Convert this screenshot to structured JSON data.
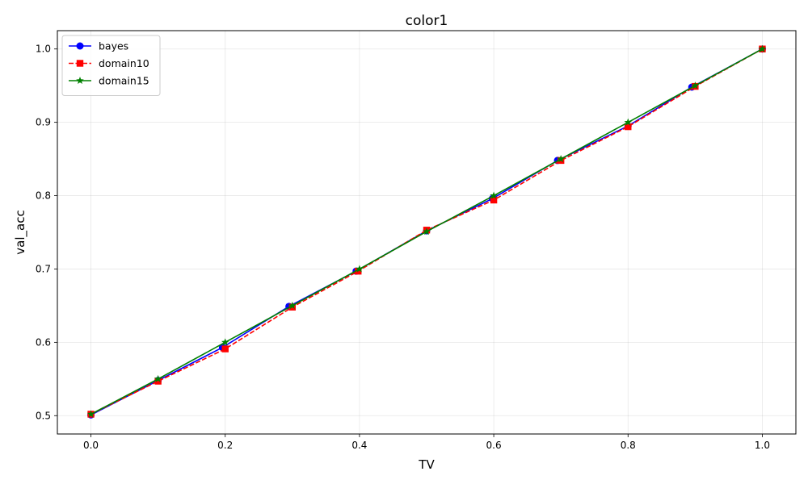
{
  "chart_data": {
    "type": "line",
    "title": "color1",
    "xlabel": "TV",
    "ylabel": "val_acc",
    "xlim": [
      -0.05,
      1.05
    ],
    "ylim": [
      0.475,
      1.025
    ],
    "xticks": [
      0.0,
      0.2,
      0.4,
      0.6,
      0.8,
      1.0
    ],
    "xtick_labels": [
      "0.0",
      "0.2",
      "0.4",
      "0.6",
      "0.8",
      "1.0"
    ],
    "yticks": [
      0.5,
      0.6,
      0.7,
      0.8,
      0.9,
      1.0
    ],
    "ytick_labels": [
      "0.5",
      "0.6",
      "0.7",
      "0.8",
      "0.9",
      "1.0"
    ],
    "grid": true,
    "legend_position": "top-left",
    "series": [
      {
        "name": "bayes",
        "color": "#0000ff",
        "linestyle": "solid",
        "marker": "circle",
        "points": [
          [
            0.0,
            0.501
          ],
          [
            0.1,
            0.548
          ],
          [
            0.196,
            0.593
          ],
          [
            0.295,
            0.649
          ],
          [
            0.395,
            0.697
          ],
          [
            0.5,
            0.752
          ],
          [
            0.598,
            0.796
          ],
          [
            0.695,
            0.848
          ],
          [
            0.8,
            0.895
          ],
          [
            0.895,
            0.948
          ],
          [
            1.0,
            1.0
          ]
        ]
      },
      {
        "name": "domain10",
        "color": "#ff0000",
        "linestyle": "dashed",
        "marker": "square",
        "points": [
          [
            0.0,
            0.502
          ],
          [
            0.1,
            0.547
          ],
          [
            0.2,
            0.591
          ],
          [
            0.3,
            0.648
          ],
          [
            0.398,
            0.697
          ],
          [
            0.5,
            0.753
          ],
          [
            0.6,
            0.794
          ],
          [
            0.7,
            0.848
          ],
          [
            0.8,
            0.894
          ],
          [
            0.9,
            0.949
          ],
          [
            1.0,
            1.0
          ]
        ]
      },
      {
        "name": "domain15",
        "color": "#008000",
        "linestyle": "solid",
        "marker": "star",
        "points": [
          [
            0.0,
            0.502
          ],
          [
            0.1,
            0.55
          ],
          [
            0.2,
            0.6
          ],
          [
            0.3,
            0.65
          ],
          [
            0.4,
            0.7
          ],
          [
            0.5,
            0.751
          ],
          [
            0.6,
            0.8
          ],
          [
            0.7,
            0.85
          ],
          [
            0.8,
            0.9
          ],
          [
            0.9,
            0.95
          ],
          [
            1.0,
            1.0
          ]
        ]
      }
    ]
  }
}
